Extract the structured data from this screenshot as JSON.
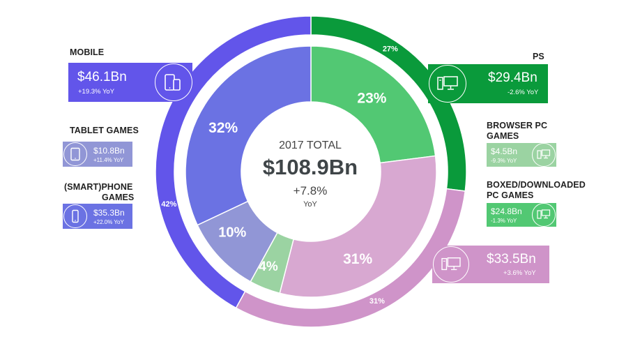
{
  "colors": {
    "mobile": "#6255ea",
    "pc": "#0a9a3b",
    "console": "#cf94c9",
    "tablet": "#9196d6",
    "smartphone": "#6b72e3",
    "browser_pc": "#9bd3a2",
    "boxed_pc": "#52c873",
    "console_inner": "#d8a8d1"
  },
  "center": {
    "title": "2017 TOTAL",
    "total": "$108.9Bn",
    "growth": "+7.8%",
    "growth_label": "YoY"
  },
  "segments": {
    "mobile": {
      "name": "MOBILE",
      "value": "$46.1Bn",
      "yoy": "+19.3% YoY",
      "share": "42%"
    },
    "pc": {
      "name": "PS",
      "value": "$29.4Bn",
      "yoy": "-2.6% YoY",
      "share": "27%"
    },
    "console": {
      "value": "$33.5Bn",
      "yoy": "+3.6% YoY",
      "share": "31%"
    },
    "tablet": {
      "name": "TABLET GAMES",
      "value": "$10.8Bn",
      "yoy": "+11.4% YoY",
      "share": "10%"
    },
    "smartphone": {
      "name_line1": "(SMART)PHONE",
      "name_line2": "GAMES",
      "value": "$35.3Bn",
      "yoy": "+22.0% YoY",
      "share": "32%"
    },
    "browser_pc": {
      "name_line1": "BROWSER PC",
      "name_line2": "GAMES",
      "value": "$4.5Bn",
      "yoy": "-9.3% YoY",
      "share": "4%"
    },
    "boxed_pc": {
      "name_line1": "BOXED/DOWNLOADED",
      "name_line2": "PC GAMES",
      "value": "$24.8Bn",
      "yoy": "-1.3% YoY",
      "share": "23%"
    },
    "console_inner": {
      "share": "31%"
    }
  },
  "icons": {
    "mobile": "phone-tablet-icon",
    "tablet": "tablet-icon",
    "smartphone": "smartphone-icon",
    "pc": "desktop-pc-icon",
    "browser_pc": "browser-monitor-icon",
    "boxed_pc": "desktop-pc-icon",
    "console": "console-monitor-icon"
  },
  "chart_data": [
    {
      "type": "pie",
      "ring": "outer",
      "categories": [
        "PS",
        "",
        "MOBILE"
      ],
      "values": [
        27,
        31,
        42
      ],
      "labels": [
        "27%",
        "31%",
        "42%"
      ],
      "amounts": [
        "$29.4Bn",
        "$33.5Bn",
        "$46.1Bn"
      ],
      "yoy": [
        "-2.6% YoY",
        "+3.6% YoY",
        "+19.3% YoY"
      ]
    },
    {
      "type": "pie",
      "ring": "inner",
      "categories": [
        "BOXED/DOWNLOADED PC GAMES",
        "",
        "BROWSER PC GAMES",
        "TABLET GAMES",
        "(SMART)PHONE GAMES"
      ],
      "values": [
        23,
        31,
        4,
        10,
        32
      ],
      "labels": [
        "23%",
        "31%",
        "4%",
        "10%",
        "32%"
      ],
      "amounts": [
        "$24.8Bn",
        "$33.5Bn",
        "$4.5Bn",
        "$10.8Bn",
        "$35.3Bn"
      ],
      "yoy": [
        "-1.3% YoY",
        "+3.6% YoY",
        "-9.3% YoY",
        "+11.4% YoY",
        "+22.0% YoY"
      ]
    }
  ]
}
